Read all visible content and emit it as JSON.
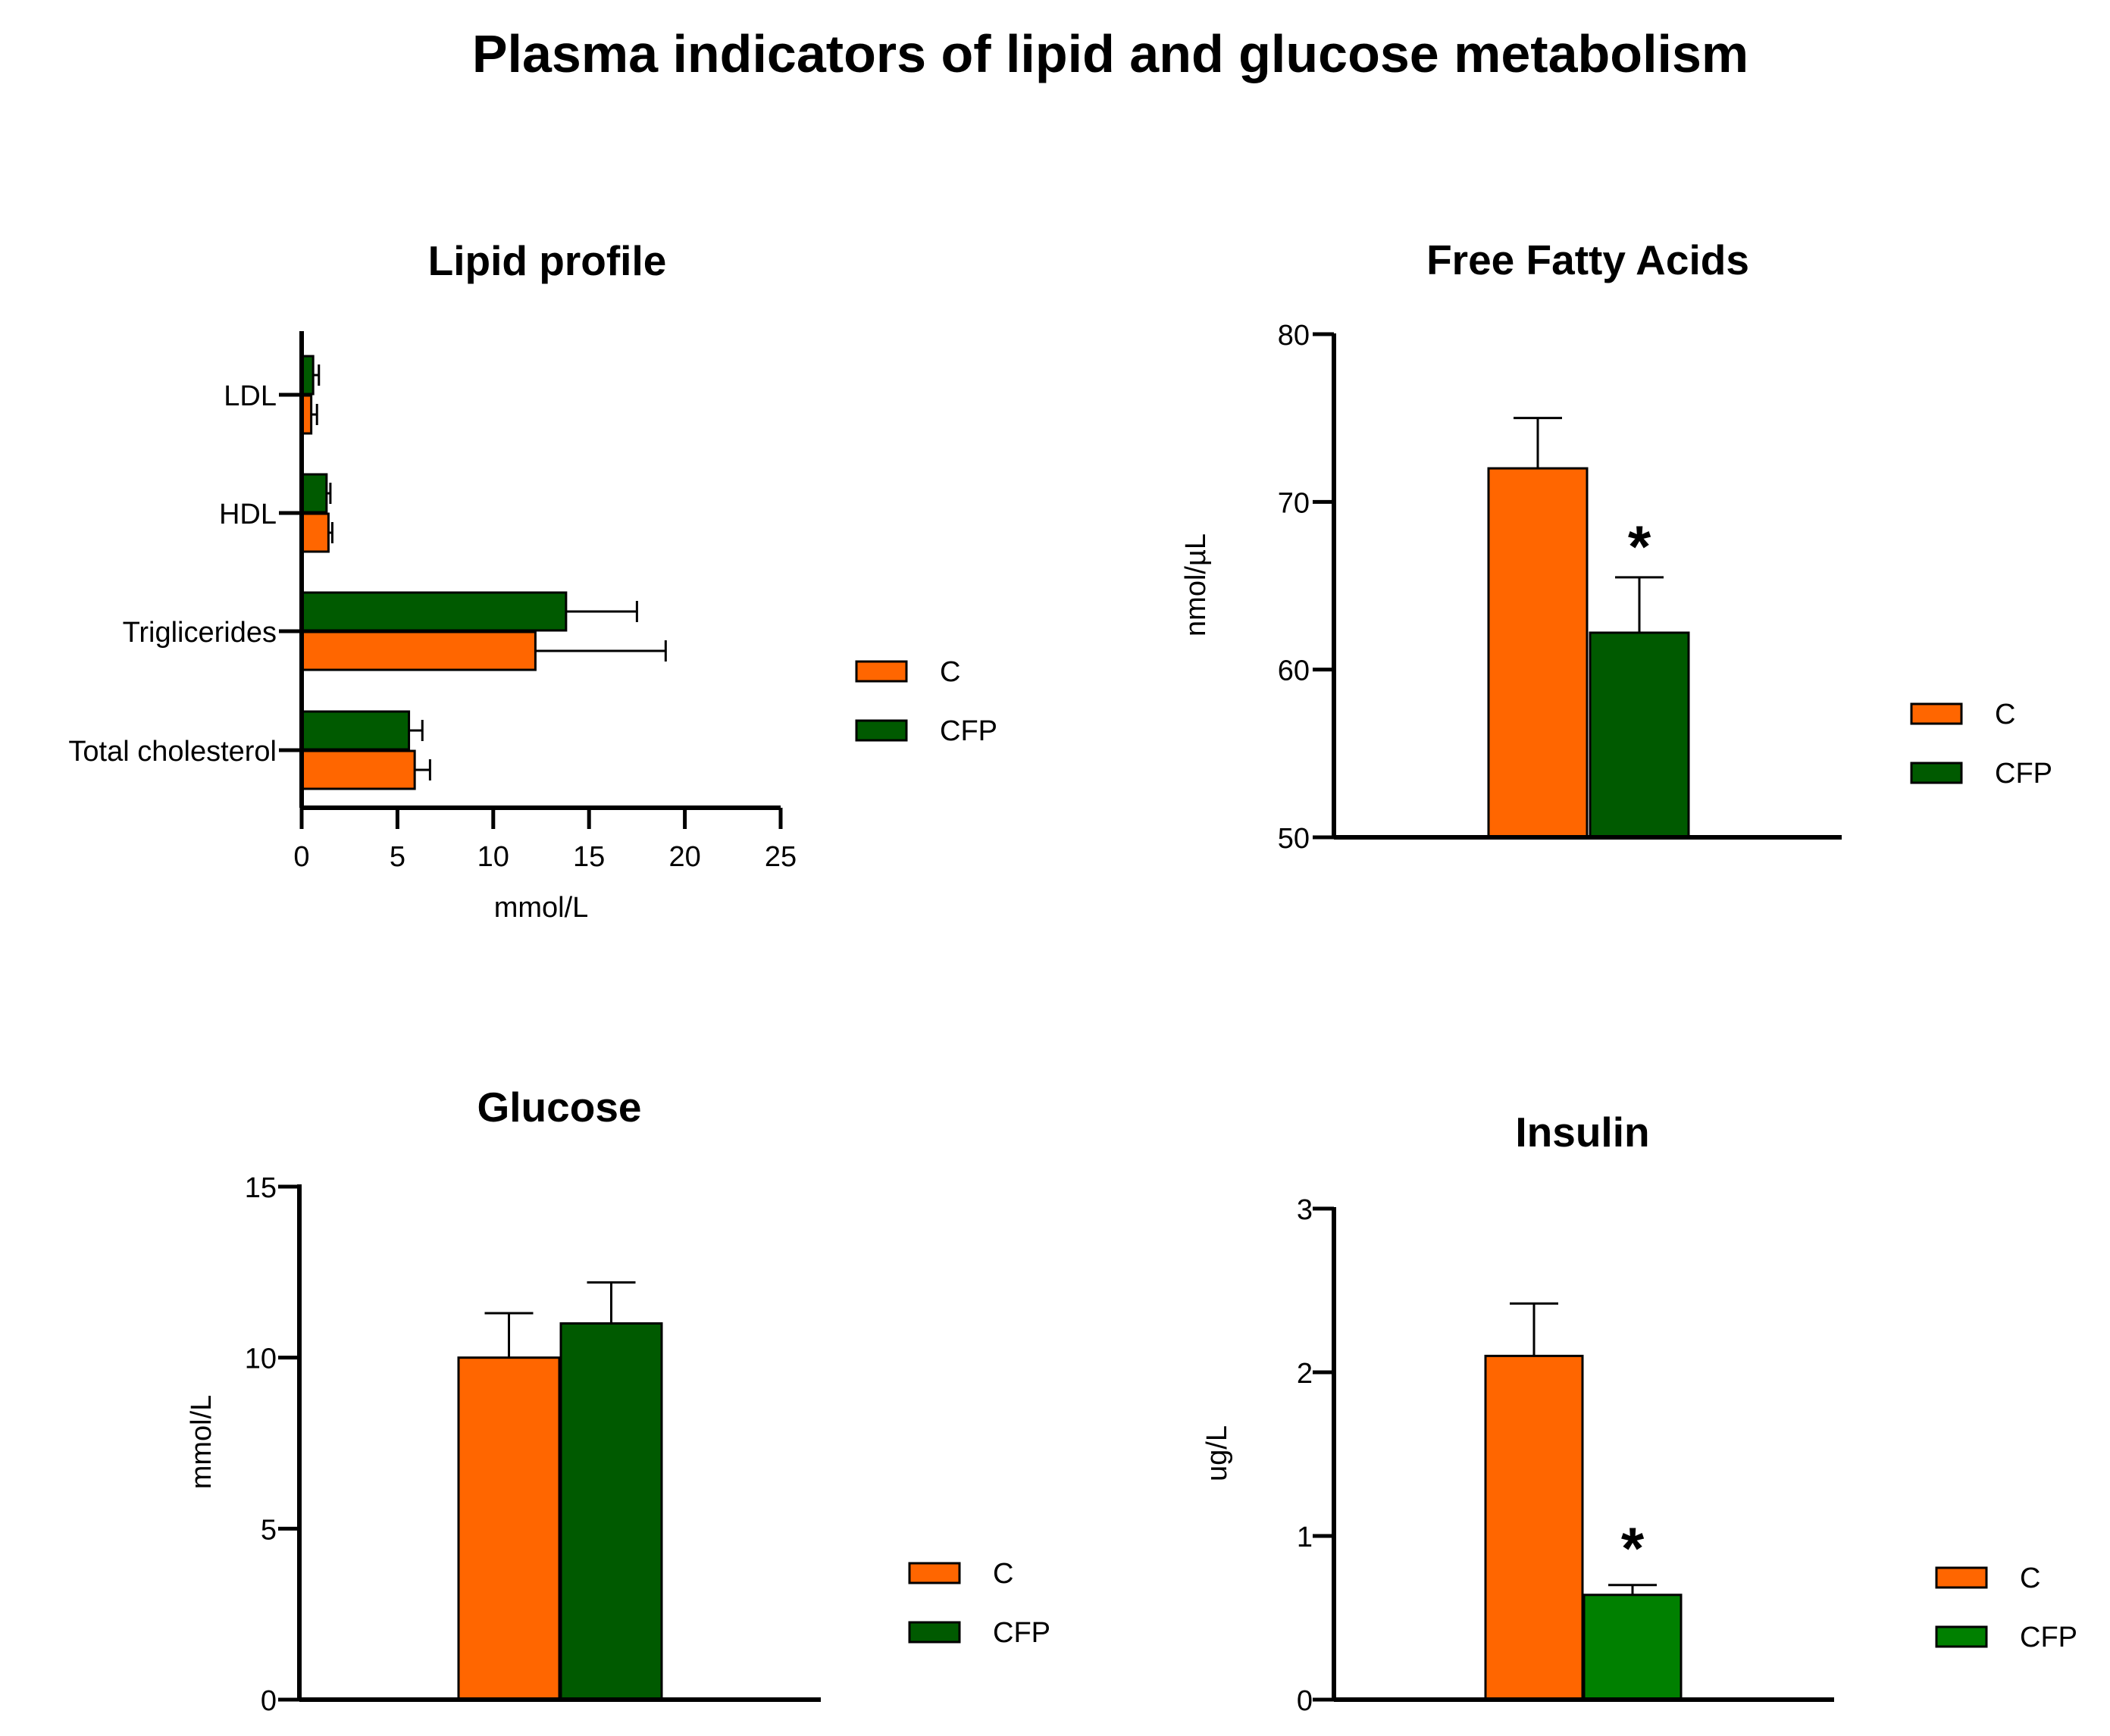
{
  "title": "Plasma indicators of lipid and glucose metabolism",
  "chart_data": [
    {
      "id": "lipid",
      "type": "bar",
      "orientation": "horizontal",
      "title": "Lipid profile",
      "categories": [
        "LDL",
        "HDL",
        "Triglicerides",
        "Total cholesterol"
      ],
      "series": [
        {
          "name": "C",
          "color": "#FF6600",
          "values": [
            0.5,
            1.4,
            12.2,
            5.9
          ],
          "errors": [
            0.3,
            0.2,
            6.8,
            0.8
          ]
        },
        {
          "name": "CFP",
          "color": "#005A00",
          "values": [
            0.6,
            1.3,
            13.8,
            5.6
          ],
          "errors": [
            0.3,
            0.2,
            3.7,
            0.7
          ]
        }
      ],
      "xlabel": "mmol/L",
      "ylabel": "",
      "xlim": [
        0,
        25
      ],
      "xticks": [
        "0",
        "5",
        "10",
        "15",
        "20",
        "25"
      ],
      "legend": [
        "C",
        "CFP"
      ],
      "legend_position": "right"
    },
    {
      "id": "ffa",
      "type": "bar",
      "title": "Free Fatty Acids",
      "categories": [
        "C",
        "CFP"
      ],
      "series": [
        {
          "name": "C",
          "color": "#FF6600",
          "value": 72,
          "error": 3
        },
        {
          "name": "CFP",
          "color": "#005A00",
          "value": 62.2,
          "error": 3.3,
          "annotation": "*"
        }
      ],
      "ylabel": "nmol/µL",
      "ylim": [
        50,
        80
      ],
      "yticks": [
        "50",
        "60",
        "70",
        "80"
      ],
      "legend": [
        "C",
        "CFP"
      ],
      "legend_position": "right"
    },
    {
      "id": "glucose",
      "type": "bar",
      "title": "Glucose",
      "categories": [
        "C",
        "CFP"
      ],
      "series": [
        {
          "name": "C",
          "color": "#FF6600",
          "value": 10,
          "error": 1.3
        },
        {
          "name": "CFP",
          "color": "#005A00",
          "value": 11,
          "error": 1.2
        }
      ],
      "ylabel": "mmol/L",
      "ylim": [
        0,
        15
      ],
      "yticks": [
        "0",
        "5",
        "10",
        "15"
      ],
      "legend": [
        "C",
        "CFP"
      ],
      "legend_position": "right"
    },
    {
      "id": "insulin",
      "type": "bar",
      "title": "Insulin",
      "categories": [
        "C",
        "CFP"
      ],
      "series": [
        {
          "name": "C",
          "color": "#FF6600",
          "value": 2.1,
          "error": 0.32
        },
        {
          "name": "CFP",
          "color": "#008000",
          "value": 0.64,
          "error": 0.06,
          "annotation": "*"
        }
      ],
      "ylabel": "ug/L",
      "ylim": [
        0,
        3
      ],
      "yticks": [
        "0",
        "1",
        "2",
        "3"
      ],
      "legend": [
        "C",
        "CFP"
      ],
      "legend_position": "right"
    }
  ]
}
